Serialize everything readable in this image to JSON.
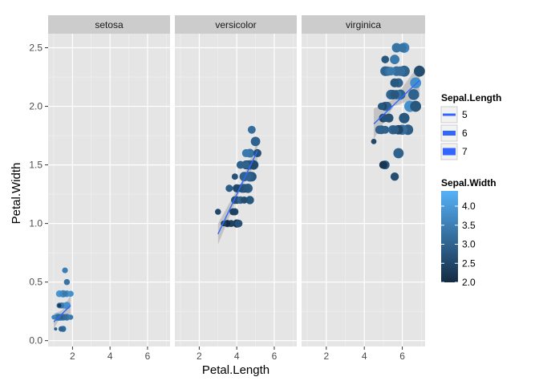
{
  "chart_data": {
    "type": "scatter",
    "xlabel": "Petal.Length",
    "ylabel": "Petal.Width",
    "xlim": [
      0.7,
      7.2
    ],
    "ylim": [
      -0.05,
      2.62
    ],
    "xticks": [
      2,
      4,
      6
    ],
    "yticks": [
      0.0,
      0.5,
      1.0,
      1.5,
      2.0,
      2.5
    ],
    "xtick_labels": [
      "2",
      "4",
      "6"
    ],
    "ytick_labels": [
      "0.0",
      "0.5",
      "1.0",
      "1.5",
      "2.0",
      "2.5"
    ],
    "grid": true,
    "legend_placement": "right",
    "facets": [
      {
        "name": "setosa",
        "points": [
          [
            1.4,
            0.2,
            5.1,
            3.5
          ],
          [
            1.4,
            0.2,
            4.9,
            3.0
          ],
          [
            1.3,
            0.2,
            4.7,
            3.2
          ],
          [
            1.5,
            0.2,
            4.6,
            3.1
          ],
          [
            1.4,
            0.2,
            5.0,
            3.6
          ],
          [
            1.7,
            0.4,
            5.4,
            3.9
          ],
          [
            1.4,
            0.3,
            4.6,
            3.4
          ],
          [
            1.5,
            0.2,
            5.0,
            3.4
          ],
          [
            1.4,
            0.2,
            4.4,
            2.9
          ],
          [
            1.5,
            0.1,
            4.9,
            3.1
          ],
          [
            1.5,
            0.2,
            5.4,
            3.7
          ],
          [
            1.6,
            0.2,
            4.8,
            3.4
          ],
          [
            1.4,
            0.1,
            4.8,
            3.0
          ],
          [
            1.1,
            0.1,
            4.3,
            3.0
          ],
          [
            1.2,
            0.2,
            5.8,
            4.0
          ],
          [
            1.5,
            0.4,
            5.7,
            4.4
          ],
          [
            1.3,
            0.4,
            5.4,
            3.9
          ],
          [
            1.4,
            0.3,
            5.1,
            3.5
          ],
          [
            1.7,
            0.3,
            5.7,
            3.8
          ],
          [
            1.5,
            0.3,
            5.1,
            3.8
          ],
          [
            1.7,
            0.2,
            5.4,
            3.4
          ],
          [
            1.5,
            0.4,
            5.1,
            3.7
          ],
          [
            1.0,
            0.2,
            4.6,
            3.6
          ],
          [
            1.7,
            0.5,
            5.1,
            3.3
          ],
          [
            1.9,
            0.2,
            4.8,
            3.4
          ],
          [
            1.6,
            0.2,
            5.0,
            3.0
          ],
          [
            1.6,
            0.4,
            5.0,
            3.4
          ],
          [
            1.5,
            0.2,
            5.2,
            3.5
          ],
          [
            1.4,
            0.2,
            5.2,
            3.4
          ],
          [
            1.6,
            0.2,
            4.7,
            3.2
          ],
          [
            1.6,
            0.2,
            4.8,
            3.1
          ],
          [
            1.5,
            0.4,
            5.4,
            3.4
          ],
          [
            1.5,
            0.1,
            5.2,
            4.1
          ],
          [
            1.4,
            0.2,
            5.5,
            4.2
          ],
          [
            1.5,
            0.2,
            4.9,
            3.1
          ],
          [
            1.2,
            0.2,
            5.0,
            3.2
          ],
          [
            1.3,
            0.2,
            5.5,
            3.5
          ],
          [
            1.4,
            0.1,
            4.9,
            3.6
          ],
          [
            1.3,
            0.2,
            4.4,
            3.0
          ],
          [
            1.5,
            0.2,
            5.1,
            3.4
          ],
          [
            1.3,
            0.3,
            5.0,
            3.5
          ],
          [
            1.3,
            0.3,
            4.5,
            2.3
          ],
          [
            1.3,
            0.2,
            4.4,
            3.2
          ],
          [
            1.6,
            0.6,
            5.0,
            3.5
          ],
          [
            1.9,
            0.4,
            5.1,
            3.8
          ],
          [
            1.4,
            0.3,
            4.8,
            3.0
          ],
          [
            1.6,
            0.2,
            5.1,
            3.8
          ],
          [
            1.4,
            0.2,
            4.6,
            3.2
          ],
          [
            1.5,
            0.2,
            5.3,
            3.7
          ],
          [
            1.4,
            0.2,
            5.0,
            3.3
          ]
        ],
        "trend": [
          [
            1.0,
            0.16
          ],
          [
            1.9,
            0.3
          ]
        ],
        "band": [
          [
            1.0,
            0.1,
            0.23
          ],
          [
            1.45,
            0.23,
            0.26
          ],
          [
            1.9,
            0.2,
            0.39
          ]
        ]
      },
      {
        "name": "versicolor",
        "points": [
          [
            4.7,
            1.4,
            7.0,
            3.2
          ],
          [
            4.5,
            1.5,
            6.4,
            3.2
          ],
          [
            4.9,
            1.5,
            6.9,
            3.1
          ],
          [
            4.0,
            1.3,
            5.5,
            2.3
          ],
          [
            4.6,
            1.5,
            6.5,
            2.8
          ],
          [
            4.5,
            1.3,
            5.7,
            2.8
          ],
          [
            4.7,
            1.6,
            6.3,
            3.3
          ],
          [
            3.3,
            1.0,
            4.9,
            2.4
          ],
          [
            4.6,
            1.3,
            6.6,
            2.9
          ],
          [
            3.9,
            1.4,
            5.2,
            2.7
          ],
          [
            3.5,
            1.0,
            5.0,
            2.0
          ],
          [
            4.2,
            1.5,
            5.9,
            3.0
          ],
          [
            4.0,
            1.0,
            6.0,
            2.2
          ],
          [
            4.7,
            1.4,
            6.1,
            2.9
          ],
          [
            3.6,
            1.3,
            5.6,
            2.9
          ],
          [
            4.4,
            1.4,
            6.7,
            3.1
          ],
          [
            4.5,
            1.5,
            5.6,
            3.0
          ],
          [
            4.1,
            1.0,
            5.8,
            2.7
          ],
          [
            4.5,
            1.5,
            6.2,
            2.2
          ],
          [
            3.9,
            1.1,
            5.6,
            2.5
          ],
          [
            4.8,
            1.8,
            5.9,
            3.2
          ],
          [
            4.0,
            1.3,
            6.1,
            2.8
          ],
          [
            4.9,
            1.5,
            6.3,
            2.5
          ],
          [
            4.7,
            1.2,
            6.1,
            2.8
          ],
          [
            4.3,
            1.3,
            6.4,
            2.9
          ],
          [
            4.4,
            1.4,
            6.6,
            3.0
          ],
          [
            4.8,
            1.4,
            6.8,
            2.8
          ],
          [
            5.0,
            1.7,
            6.7,
            3.0
          ],
          [
            4.5,
            1.5,
            6.0,
            2.9
          ],
          [
            3.5,
            1.0,
            5.7,
            2.6
          ],
          [
            3.8,
            1.1,
            5.5,
            2.4
          ],
          [
            3.7,
            1.0,
            5.5,
            2.4
          ],
          [
            3.9,
            1.2,
            5.8,
            2.7
          ],
          [
            5.1,
            1.6,
            6.0,
            2.7
          ],
          [
            4.5,
            1.5,
            5.4,
            3.0
          ],
          [
            4.5,
            1.6,
            6.0,
            3.4
          ],
          [
            4.7,
            1.5,
            6.7,
            3.1
          ],
          [
            4.4,
            1.3,
            6.3,
            2.3
          ],
          [
            4.1,
            1.3,
            5.6,
            3.0
          ],
          [
            4.0,
            1.3,
            5.5,
            2.5
          ],
          [
            4.4,
            1.2,
            5.5,
            2.6
          ],
          [
            4.6,
            1.4,
            6.1,
            3.0
          ],
          [
            4.0,
            1.2,
            5.8,
            2.6
          ],
          [
            3.3,
            1.0,
            5.0,
            2.3
          ],
          [
            4.2,
            1.3,
            5.6,
            2.7
          ],
          [
            4.2,
            1.2,
            5.7,
            3.0
          ],
          [
            4.2,
            1.3,
            5.7,
            2.9
          ],
          [
            4.3,
            1.3,
            6.2,
            2.9
          ],
          [
            3.0,
            1.1,
            5.1,
            2.5
          ],
          [
            4.1,
            1.3,
            5.7,
            2.8
          ]
        ],
        "trend": [
          [
            3.0,
            0.91
          ],
          [
            5.1,
            1.62
          ]
        ],
        "band": [
          [
            3.0,
            0.82,
            1.0
          ],
          [
            4.26,
            1.31,
            1.36
          ],
          [
            5.1,
            1.54,
            1.7
          ]
        ]
      },
      {
        "name": "virginica",
        "points": [
          [
            6.0,
            2.5,
            6.3,
            3.3
          ],
          [
            5.1,
            1.9,
            5.8,
            2.7
          ],
          [
            5.9,
            2.1,
            7.1,
            3.0
          ],
          [
            5.6,
            1.8,
            6.3,
            2.9
          ],
          [
            5.8,
            2.2,
            6.5,
            3.0
          ],
          [
            6.6,
            2.1,
            7.6,
            3.0
          ],
          [
            4.5,
            1.7,
            4.9,
            2.5
          ],
          [
            6.3,
            1.8,
            7.3,
            2.9
          ],
          [
            5.8,
            1.8,
            6.7,
            2.5
          ],
          [
            6.1,
            2.5,
            7.2,
            3.6
          ],
          [
            5.1,
            2.0,
            6.5,
            3.2
          ],
          [
            5.3,
            1.9,
            6.4,
            2.7
          ],
          [
            5.5,
            2.1,
            6.8,
            3.0
          ],
          [
            5.0,
            2.0,
            5.7,
            2.5
          ],
          [
            5.1,
            2.4,
            5.8,
            2.8
          ],
          [
            5.3,
            2.3,
            6.4,
            3.2
          ],
          [
            5.5,
            1.8,
            6.5,
            3.0
          ],
          [
            6.7,
            2.2,
            7.7,
            3.8
          ],
          [
            6.9,
            2.3,
            7.7,
            2.6
          ],
          [
            5.0,
            1.5,
            6.0,
            2.2
          ],
          [
            5.7,
            2.3,
            6.9,
            3.2
          ],
          [
            4.9,
            2.0,
            5.6,
            2.8
          ],
          [
            6.7,
            2.0,
            7.7,
            2.8
          ],
          [
            4.9,
            1.8,
            6.3,
            2.7
          ],
          [
            5.7,
            2.1,
            6.7,
            3.3
          ],
          [
            6.0,
            1.8,
            7.2,
            3.2
          ],
          [
            4.8,
            1.8,
            6.2,
            2.8
          ],
          [
            4.9,
            1.8,
            6.1,
            3.0
          ],
          [
            5.6,
            2.1,
            6.4,
            2.8
          ],
          [
            5.8,
            1.6,
            7.2,
            3.0
          ],
          [
            6.1,
            1.9,
            7.4,
            2.8
          ],
          [
            6.4,
            2.0,
            7.9,
            3.8
          ],
          [
            5.6,
            2.2,
            6.4,
            2.8
          ],
          [
            5.1,
            1.5,
            6.3,
            2.8
          ],
          [
            5.6,
            1.4,
            6.1,
            2.6
          ],
          [
            6.1,
            2.3,
            7.7,
            3.0
          ],
          [
            5.6,
            2.4,
            6.3,
            3.4
          ],
          [
            5.5,
            1.8,
            6.4,
            3.1
          ],
          [
            4.8,
            1.8,
            6.0,
            3.0
          ],
          [
            5.4,
            2.1,
            6.9,
            3.1
          ],
          [
            5.6,
            2.4,
            6.7,
            3.1
          ],
          [
            5.1,
            2.3,
            6.9,
            3.1
          ],
          [
            5.1,
            1.9,
            5.8,
            2.7
          ],
          [
            5.9,
            2.3,
            6.8,
            3.2
          ],
          [
            5.7,
            2.5,
            6.7,
            3.3
          ],
          [
            5.2,
            2.3,
            6.7,
            3.0
          ],
          [
            5.0,
            1.9,
            6.3,
            2.5
          ],
          [
            5.2,
            2.0,
            6.5,
            3.0
          ],
          [
            5.4,
            2.3,
            6.2,
            3.4
          ],
          [
            5.1,
            1.8,
            5.9,
            3.0
          ]
        ],
        "trend": [
          [
            4.5,
            1.85
          ],
          [
            6.9,
            2.22
          ]
        ],
        "band": [
          [
            4.5,
            1.72,
            1.98
          ],
          [
            5.55,
            2.0,
            2.06
          ],
          [
            6.9,
            2.08,
            2.36
          ]
        ]
      }
    ],
    "point_fields": [
      "Petal.Length",
      "Petal.Width",
      "Sepal.Length",
      "Sepal.Width"
    ],
    "legend_size": {
      "title": "Sepal.Length",
      "entries": [
        {
          "label": "5",
          "value": 5
        },
        {
          "label": "6",
          "value": 6
        },
        {
          "label": "7",
          "value": 7
        }
      ]
    },
    "legend_color": {
      "title": "Sepal.Width",
      "low_color": "#132B43",
      "high_color": "#56B1F7",
      "range": [
        2.0,
        4.4
      ],
      "ticks": [
        {
          "label": "4.0",
          "value": 4.0
        },
        {
          "label": "3.5",
          "value": 3.5
        },
        {
          "label": "3.0",
          "value": 3.0
        },
        {
          "label": "2.5",
          "value": 2.5
        },
        {
          "label": "2.0",
          "value": 2.0
        }
      ]
    },
    "colors": {
      "panel_bg": "#E5E5E5",
      "grid_major": "#FFFFFF",
      "grid_minor": "#F2F2F2",
      "strip_bg": "#CCCCCC",
      "trend_line": "#3366FF",
      "band_fill": "#999999"
    }
  }
}
